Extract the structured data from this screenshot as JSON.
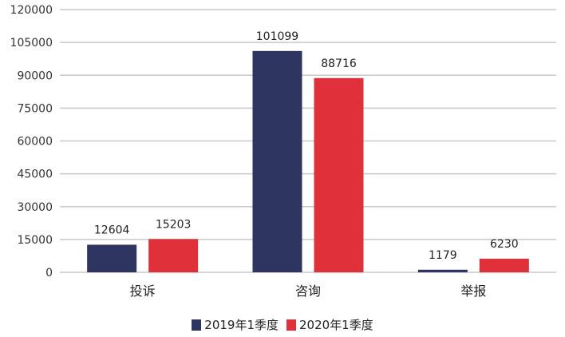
{
  "chart_data": {
    "type": "bar",
    "categories": [
      "投诉",
      "咨询",
      "举报"
    ],
    "series": [
      {
        "name": "2019年1季度",
        "values": [
          12604,
          101099,
          1179
        ],
        "color": "#2e3561"
      },
      {
        "name": "2020年1季度",
        "values": [
          15203,
          88716,
          6230
        ],
        "color": "#e0303a"
      }
    ],
    "yticks": [
      "0",
      "15000",
      "30000",
      "45000",
      "60000",
      "75000",
      "90000",
      "105000",
      "120000"
    ],
    "ylim": [
      0,
      120000
    ],
    "grid": true,
    "legend": "bottom",
    "data_labels": true
  }
}
